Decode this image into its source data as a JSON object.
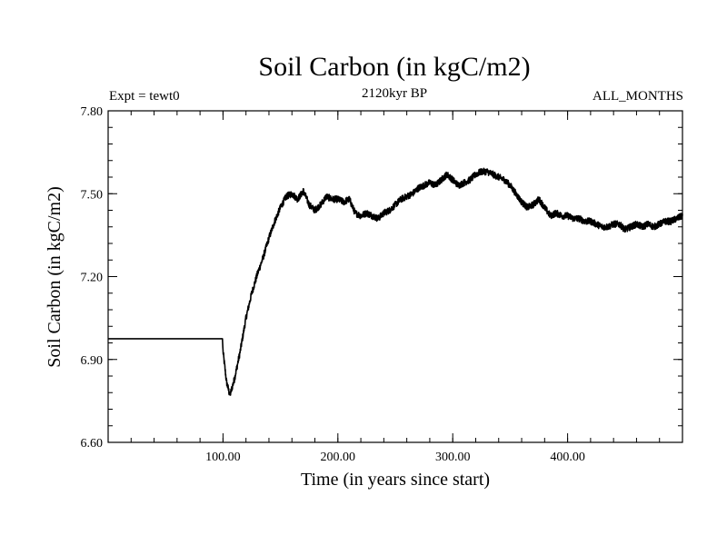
{
  "chart_data": {
    "type": "line",
    "title": "Soil Carbon (in kgC/m2)",
    "subtitle": "2120kyr BP",
    "left_label": "Expt = tewt0",
    "right_label": "ALL_MONTHS",
    "xlabel": "Time (in years since start)",
    "ylabel": "Soil Carbon (in kgC/m2)",
    "xlim": [
      0,
      500
    ],
    "ylim": [
      6.6,
      7.8
    ],
    "x_ticks": [
      {
        "value": 100,
        "label": "100.00"
      },
      {
        "value": 200,
        "label": "200.00"
      },
      {
        "value": 300,
        "label": "300.00"
      },
      {
        "value": 400,
        "label": "400.00"
      }
    ],
    "y_ticks": [
      {
        "value": 6.6,
        "label": "6.60"
      },
      {
        "value": 6.9,
        "label": "6.90"
      },
      {
        "value": 7.2,
        "label": "7.20"
      },
      {
        "value": 7.5,
        "label": "7.50"
      },
      {
        "value": 7.8,
        "label": "7.80"
      }
    ],
    "minor_x_step": 20,
    "minor_y_step": 0.06,
    "series": [
      {
        "name": "soil carbon",
        "color": "#000000",
        "noise_amplitude": 0.012,
        "x": [
          0,
          99.5,
          100,
          103,
          106,
          110,
          115,
          120,
          125,
          130,
          135,
          140,
          145,
          150,
          155,
          160,
          165,
          170,
          175,
          180,
          185,
          190,
          195,
          200,
          205,
          210,
          215,
          220,
          225,
          230,
          235,
          240,
          245,
          250,
          255,
          260,
          265,
          270,
          275,
          280,
          285,
          290,
          295,
          300,
          305,
          310,
          315,
          320,
          325,
          330,
          335,
          340,
          345,
          350,
          355,
          360,
          365,
          370,
          375,
          380,
          385,
          390,
          395,
          400,
          405,
          410,
          415,
          420,
          425,
          430,
          435,
          440,
          445,
          450,
          455,
          460,
          465,
          470,
          475,
          480,
          485,
          490,
          495,
          500
        ],
        "values": [
          6.975,
          6.975,
          6.93,
          6.82,
          6.77,
          6.83,
          6.93,
          7.05,
          7.14,
          7.21,
          7.27,
          7.34,
          7.4,
          7.45,
          7.49,
          7.5,
          7.48,
          7.51,
          7.46,
          7.44,
          7.46,
          7.49,
          7.48,
          7.48,
          7.47,
          7.48,
          7.43,
          7.42,
          7.43,
          7.42,
          7.41,
          7.43,
          7.44,
          7.46,
          7.48,
          7.49,
          7.5,
          7.52,
          7.53,
          7.54,
          7.53,
          7.55,
          7.57,
          7.55,
          7.53,
          7.54,
          7.55,
          7.57,
          7.58,
          7.58,
          7.57,
          7.56,
          7.55,
          7.53,
          7.5,
          7.47,
          7.45,
          7.46,
          7.48,
          7.45,
          7.42,
          7.43,
          7.42,
          7.42,
          7.41,
          7.41,
          7.4,
          7.4,
          7.39,
          7.38,
          7.38,
          7.39,
          7.39,
          7.37,
          7.38,
          7.39,
          7.38,
          7.39,
          7.38,
          7.39,
          7.4,
          7.4,
          7.41,
          7.42
        ]
      }
    ]
  }
}
